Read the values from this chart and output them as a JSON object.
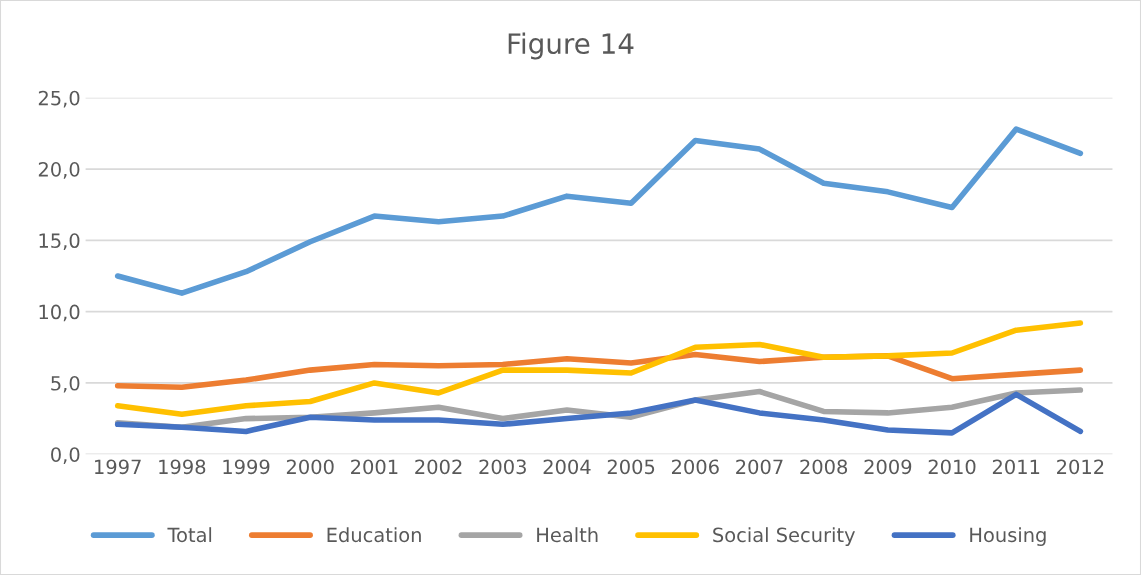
{
  "chart_data": {
    "type": "line",
    "title": "Figure 14",
    "categories": [
      "1997",
      "1998",
      "1999",
      "2000",
      "2001",
      "2002",
      "2003",
      "2004",
      "2005",
      "2006",
      "2007",
      "2008",
      "2009",
      "2010",
      "2011",
      "2012"
    ],
    "series": [
      {
        "name": "Total",
        "color": "#5b9bd5",
        "values": [
          12.5,
          11.3,
          12.8,
          14.9,
          16.7,
          16.3,
          16.7,
          18.1,
          17.6,
          22.0,
          21.4,
          19.0,
          18.4,
          17.3,
          22.8,
          21.1
        ]
      },
      {
        "name": "Education",
        "color": "#ed7d31",
        "values": [
          4.8,
          4.7,
          5.2,
          5.9,
          6.3,
          6.2,
          6.3,
          6.7,
          6.4,
          7.0,
          6.5,
          6.8,
          6.9,
          5.3,
          5.6,
          5.9
        ]
      },
      {
        "name": "Health",
        "color": "#a5a5a5",
        "values": [
          2.2,
          1.9,
          2.5,
          2.6,
          2.9,
          3.3,
          2.5,
          3.1,
          2.6,
          3.8,
          4.4,
          3.0,
          2.9,
          3.3,
          4.3,
          4.5
        ]
      },
      {
        "name": "Social Security",
        "color": "#ffc000",
        "values": [
          3.4,
          2.8,
          3.4,
          3.7,
          5.0,
          4.3,
          5.9,
          5.9,
          5.7,
          7.5,
          7.7,
          6.8,
          6.9,
          7.1,
          8.7,
          9.2
        ]
      },
      {
        "name": "Housing",
        "color": "#4472c4",
        "values": [
          2.1,
          1.9,
          1.6,
          2.6,
          2.4,
          2.4,
          2.1,
          2.5,
          2.9,
          3.8,
          2.9,
          2.4,
          1.7,
          1.5,
          4.2,
          1.6
        ]
      }
    ],
    "ylim": [
      0,
      25
    ],
    "yticks": [
      {
        "value": 0,
        "label": "0,0"
      },
      {
        "value": 5,
        "label": "5,0"
      },
      {
        "value": 10,
        "label": "10,0"
      },
      {
        "value": 15,
        "label": "15,0"
      },
      {
        "value": 20,
        "label": "20,0"
      },
      {
        "value": 25,
        "label": "25,0"
      }
    ],
    "grid": "y",
    "legend": "bottom",
    "marker": "none",
    "line_style": "solid"
  }
}
